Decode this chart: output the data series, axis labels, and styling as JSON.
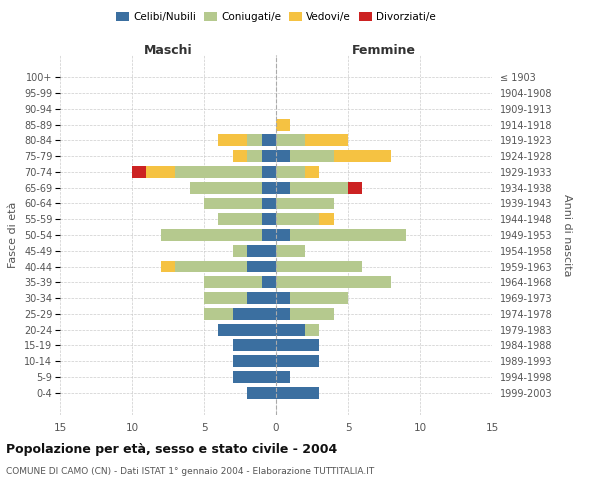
{
  "age_groups": [
    "0-4",
    "5-9",
    "10-14",
    "15-19",
    "20-24",
    "25-29",
    "30-34",
    "35-39",
    "40-44",
    "45-49",
    "50-54",
    "55-59",
    "60-64",
    "65-69",
    "70-74",
    "75-79",
    "80-84",
    "85-89",
    "90-94",
    "95-99",
    "100+"
  ],
  "birth_years": [
    "1999-2003",
    "1994-1998",
    "1989-1993",
    "1984-1988",
    "1979-1983",
    "1974-1978",
    "1969-1973",
    "1964-1968",
    "1959-1963",
    "1954-1958",
    "1949-1953",
    "1944-1948",
    "1939-1943",
    "1934-1938",
    "1929-1933",
    "1924-1928",
    "1919-1923",
    "1914-1918",
    "1909-1913",
    "1904-1908",
    "≤ 1903"
  ],
  "male": {
    "celibi": [
      2,
      3,
      3,
      3,
      4,
      3,
      2,
      1,
      2,
      2,
      1,
      1,
      1,
      1,
      1,
      1,
      1,
      0,
      0,
      0,
      0
    ],
    "coniugati": [
      0,
      0,
      0,
      0,
      0,
      2,
      3,
      4,
      5,
      1,
      7,
      3,
      4,
      5,
      6,
      1,
      1,
      0,
      0,
      0,
      0
    ],
    "vedovi": [
      0,
      0,
      0,
      0,
      0,
      0,
      0,
      0,
      1,
      0,
      0,
      0,
      0,
      0,
      2,
      1,
      2,
      0,
      0,
      0,
      0
    ],
    "divorziati": [
      0,
      0,
      0,
      0,
      0,
      0,
      0,
      0,
      0,
      0,
      0,
      0,
      0,
      0,
      1,
      0,
      0,
      0,
      0,
      0,
      0
    ]
  },
  "female": {
    "nubili": [
      3,
      1,
      3,
      3,
      2,
      1,
      1,
      0,
      0,
      0,
      1,
      0,
      0,
      1,
      0,
      1,
      0,
      0,
      0,
      0,
      0
    ],
    "coniugate": [
      0,
      0,
      0,
      0,
      1,
      3,
      4,
      8,
      6,
      2,
      8,
      3,
      4,
      4,
      2,
      3,
      2,
      0,
      0,
      0,
      0
    ],
    "vedove": [
      0,
      0,
      0,
      0,
      0,
      0,
      0,
      0,
      0,
      0,
      0,
      1,
      0,
      0,
      1,
      4,
      3,
      1,
      0,
      0,
      0
    ],
    "divorziate": [
      0,
      0,
      0,
      0,
      0,
      0,
      0,
      0,
      0,
      0,
      0,
      0,
      0,
      1,
      0,
      0,
      0,
      0,
      0,
      0,
      0
    ]
  },
  "colors": {
    "celibi": "#3b6fa0",
    "coniugati": "#b5c98e",
    "vedovi": "#f5c242",
    "divorziati": "#cc2222"
  },
  "xlim": 15,
  "title": "Popolazione per età, sesso e stato civile - 2004",
  "subtitle": "COMUNE DI CAMO (CN) - Dati ISTAT 1° gennaio 2004 - Elaborazione TUTTITALIA.IT",
  "xlabel_left": "Maschi",
  "xlabel_right": "Femmine",
  "ylabel_left": "Fasce di età",
  "ylabel_right": "Anni di nascita",
  "grid_color": "#cccccc"
}
